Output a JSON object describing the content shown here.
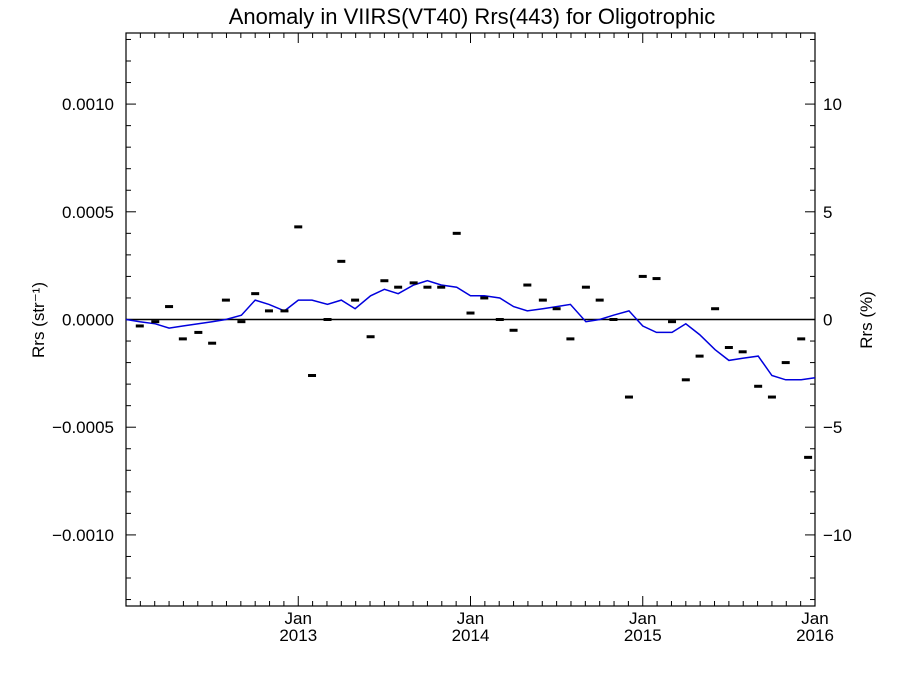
{
  "chart_data": {
    "type": "line",
    "title": "Anomaly in VIIRS(VT40) Rrs(443) for Oligotrophic",
    "ylabel_left": "Rrs (str⁻¹)",
    "ylabel_right": "Rrs (%)",
    "x_tick_labels": [
      {
        "month": "Jan",
        "year": "2013",
        "t": 2013.0
      },
      {
        "month": "Jan",
        "year": "2014",
        "t": 2014.0
      },
      {
        "month": "Jan",
        "year": "2015",
        "t": 2015.0
      },
      {
        "month": "Jan",
        "year": "2016",
        "t": 2016.0
      }
    ],
    "xlim": [
      2012.0,
      2016.0
    ],
    "ylim_left": [
      -0.00133,
      0.00133
    ],
    "ylim_right": [
      -13.3,
      13.3
    ],
    "y_ticks_left": [
      {
        "v": 0.001,
        "label": "0.0010"
      },
      {
        "v": 0.0005,
        "label": "0.0005"
      },
      {
        "v": 0.0,
        "label": "0.0000"
      },
      {
        "v": -0.0005,
        "label": "−0.0005"
      },
      {
        "v": -0.001,
        "label": "−0.0010"
      }
    ],
    "y_ticks_right": [
      {
        "v": 10,
        "label": "10"
      },
      {
        "v": 5,
        "label": "5"
      },
      {
        "v": 0,
        "label": "0"
      },
      {
        "v": -5,
        "label": "−5"
      },
      {
        "v": -10,
        "label": "−10"
      }
    ],
    "zero_line": 0.0,
    "colors": {
      "line": "#0000dd",
      "points": "#000000",
      "zero": "#000000"
    },
    "series": [
      {
        "kind": "monthly_anomaly_markers",
        "points": [
          [
            2012.08,
            -3e-05
          ],
          [
            2012.17,
            -1e-05
          ],
          [
            2012.25,
            6e-05
          ],
          [
            2012.33,
            -9e-05
          ],
          [
            2012.42,
            -6e-05
          ],
          [
            2012.5,
            -0.00011
          ],
          [
            2012.58,
            9e-05
          ],
          [
            2012.67,
            -1e-05
          ],
          [
            2012.75,
            0.00012
          ],
          [
            2012.83,
            4e-05
          ],
          [
            2012.92,
            4e-05
          ],
          [
            2013.0,
            0.00043
          ],
          [
            2013.08,
            -0.00026
          ],
          [
            2013.17,
            0.0
          ],
          [
            2013.25,
            0.00027
          ],
          [
            2013.33,
            9e-05
          ],
          [
            2013.42,
            -8e-05
          ],
          [
            2013.5,
            0.00018
          ],
          [
            2013.58,
            0.00015
          ],
          [
            2013.67,
            0.00017
          ],
          [
            2013.75,
            0.00015
          ],
          [
            2013.83,
            0.00015
          ],
          [
            2013.92,
            0.0004
          ],
          [
            2014.0,
            3e-05
          ],
          [
            2014.08,
            0.0001
          ],
          [
            2014.17,
            0.0
          ],
          [
            2014.25,
            -5e-05
          ],
          [
            2014.33,
            0.00016
          ],
          [
            2014.42,
            9e-05
          ],
          [
            2014.5,
            5e-05
          ],
          [
            2014.58,
            -9e-05
          ],
          [
            2014.67,
            0.00015
          ],
          [
            2014.75,
            9e-05
          ],
          [
            2014.83,
            0.0
          ],
          [
            2014.92,
            -0.00036
          ],
          [
            2015.0,
            0.0002
          ],
          [
            2015.08,
            0.00019
          ],
          [
            2015.17,
            -1e-05
          ],
          [
            2015.25,
            -0.00028
          ],
          [
            2015.33,
            -0.00017
          ],
          [
            2015.42,
            5e-05
          ],
          [
            2015.5,
            -0.00013
          ],
          [
            2015.58,
            -0.00015
          ],
          [
            2015.67,
            -0.00031
          ],
          [
            2015.75,
            -0.00036
          ],
          [
            2015.83,
            -0.0002
          ],
          [
            2015.92,
            -9e-05
          ],
          [
            2015.96,
            -0.00064
          ]
        ]
      },
      {
        "kind": "running_mean_line",
        "points": [
          [
            2012.0,
            0.0
          ],
          [
            2012.08,
            -1e-05
          ],
          [
            2012.17,
            -2e-05
          ],
          [
            2012.25,
            -4e-05
          ],
          [
            2012.33,
            -3e-05
          ],
          [
            2012.42,
            -2e-05
          ],
          [
            2012.5,
            -1e-05
          ],
          [
            2012.58,
            0.0
          ],
          [
            2012.67,
            2e-05
          ],
          [
            2012.75,
            9e-05
          ],
          [
            2012.83,
            7e-05
          ],
          [
            2012.92,
            4e-05
          ],
          [
            2013.0,
            9e-05
          ],
          [
            2013.08,
            9e-05
          ],
          [
            2013.17,
            7e-05
          ],
          [
            2013.25,
            9e-05
          ],
          [
            2013.33,
            5e-05
          ],
          [
            2013.42,
            0.00011
          ],
          [
            2013.5,
            0.00014
          ],
          [
            2013.58,
            0.00012
          ],
          [
            2013.67,
            0.00016
          ],
          [
            2013.75,
            0.00018
          ],
          [
            2013.83,
            0.00016
          ],
          [
            2013.92,
            0.00015
          ],
          [
            2014.0,
            0.00011
          ],
          [
            2014.08,
            0.00011
          ],
          [
            2014.17,
            0.0001
          ],
          [
            2014.25,
            6e-05
          ],
          [
            2014.33,
            4e-05
          ],
          [
            2014.42,
            5e-05
          ],
          [
            2014.5,
            6e-05
          ],
          [
            2014.58,
            7e-05
          ],
          [
            2014.67,
            -1e-05
          ],
          [
            2014.75,
            0.0
          ],
          [
            2014.83,
            2e-05
          ],
          [
            2014.92,
            4e-05
          ],
          [
            2015.0,
            -3e-05
          ],
          [
            2015.08,
            -6e-05
          ],
          [
            2015.17,
            -6e-05
          ],
          [
            2015.25,
            -2e-05
          ],
          [
            2015.33,
            -7e-05
          ],
          [
            2015.42,
            -0.00014
          ],
          [
            2015.5,
            -0.00019
          ],
          [
            2015.58,
            -0.00018
          ],
          [
            2015.67,
            -0.00017
          ],
          [
            2015.75,
            -0.00026
          ],
          [
            2015.83,
            -0.00028
          ],
          [
            2015.92,
            -0.00028
          ],
          [
            2016.0,
            -0.00027
          ]
        ]
      }
    ]
  }
}
